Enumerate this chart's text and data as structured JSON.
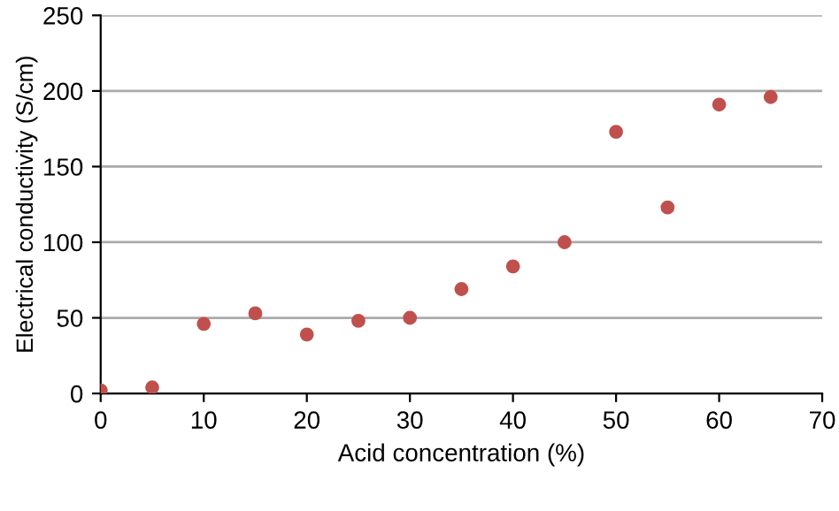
{
  "chart_data": {
    "type": "scatter",
    "xlabel": "Acid concentration (%)",
    "ylabel": "Electrical conductivity (S/cm)",
    "x": [
      0,
      5,
      10,
      15,
      20,
      25,
      30,
      35,
      40,
      45,
      50,
      55,
      60,
      65
    ],
    "series": [
      {
        "color": "#c0504d",
        "values": [
          2,
          4,
          46,
          53,
          39,
          48,
          50,
          69,
          84,
          100,
          173,
          123,
          191,
          196
        ]
      }
    ],
    "xlim": [
      0,
      70
    ],
    "xticks": [
      0,
      10,
      20,
      30,
      40,
      50,
      60,
      70
    ],
    "ylim": [
      0,
      250
    ],
    "yticks": [
      0,
      50,
      100,
      150,
      200,
      250
    ],
    "grid": "y",
    "marker": "circle",
    "legend": false
  }
}
